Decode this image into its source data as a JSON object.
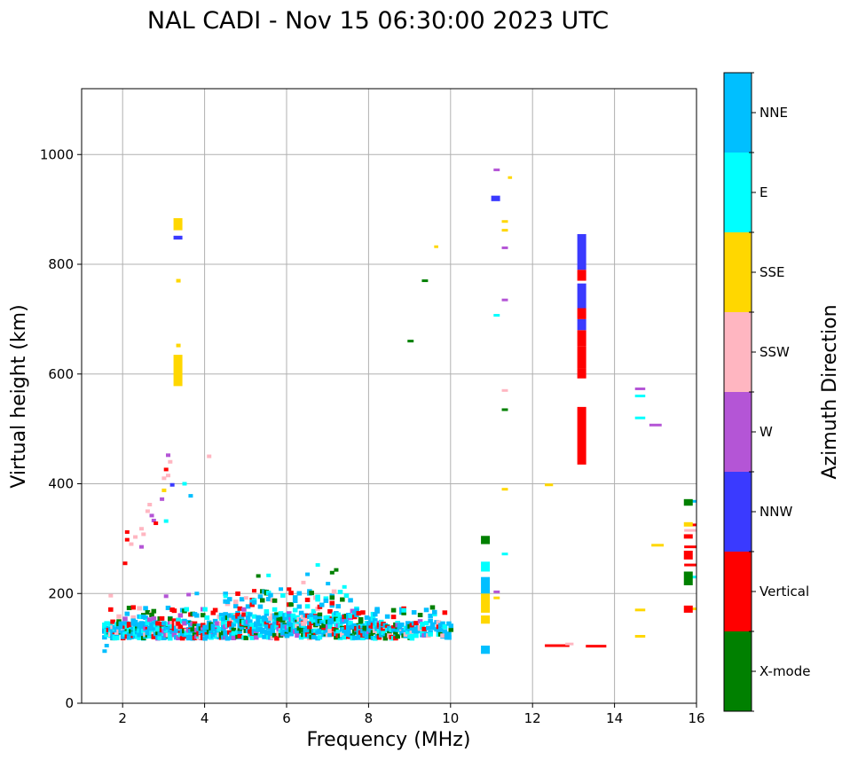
{
  "chart_data": {
    "type": "scatter",
    "title": "NAL CADI - Nov 15 06:30:00 2023 UTC",
    "xlabel": "Frequency (MHz)",
    "ylabel": "Virtual height (km)",
    "xlim": [
      1,
      16
    ],
    "ylim": [
      0,
      1120
    ],
    "xticks": [
      2,
      4,
      6,
      8,
      10,
      12,
      14,
      16
    ],
    "yticks": [
      0,
      200,
      400,
      600,
      800,
      1000
    ],
    "grid": true,
    "colorbar": {
      "title": "Azimuth Direction",
      "categories": [
        {
          "name": "X-mode",
          "color": "#008000"
        },
        {
          "name": "Vertical",
          "color": "#ff0000"
        },
        {
          "name": "NNW",
          "color": "#3a3aff"
        },
        {
          "name": "W",
          "color": "#b455d6"
        },
        {
          "name": "SSW",
          "color": "#ffb6c1"
        },
        {
          "name": "SSE",
          "color": "#ffd700"
        },
        {
          "name": "E",
          "color": "#00ffff"
        },
        {
          "name": "NNE",
          "color": "#00bfff"
        }
      ]
    },
    "segments": [
      {
        "x": 13.2,
        "y0": 435,
        "y1": 540,
        "c": "Vertical"
      },
      {
        "x": 13.2,
        "y0": 592,
        "y1": 610,
        "c": "Vertical"
      },
      {
        "x": 13.2,
        "y0": 610,
        "y1": 650,
        "c": "Vertical"
      },
      {
        "x": 13.2,
        "y0": 650,
        "y1": 680,
        "c": "Vertical"
      },
      {
        "x": 13.2,
        "y0": 680,
        "y1": 700,
        "c": "NNW"
      },
      {
        "x": 13.2,
        "y0": 700,
        "y1": 720,
        "c": "Vertical"
      },
      {
        "x": 13.2,
        "y0": 720,
        "y1": 765,
        "c": "NNW"
      },
      {
        "x": 13.2,
        "y0": 770,
        "y1": 790,
        "c": "Vertical"
      },
      {
        "x": 13.2,
        "y0": 790,
        "y1": 855,
        "c": "NNW"
      },
      {
        "x": 3.35,
        "y0": 578,
        "y1": 635,
        "c": "SSE"
      },
      {
        "x": 3.35,
        "y0": 862,
        "y1": 884,
        "c": "SSE"
      },
      {
        "x": 3.35,
        "y0": 845,
        "y1": 852,
        "c": "NNW"
      },
      {
        "x": 10.85,
        "y0": 90,
        "y1": 105,
        "c": "NNE"
      },
      {
        "x": 10.85,
        "y0": 145,
        "y1": 160,
        "c": "SSE"
      },
      {
        "x": 10.85,
        "y0": 165,
        "y1": 200,
        "c": "SSE"
      },
      {
        "x": 10.85,
        "y0": 200,
        "y1": 230,
        "c": "NNE"
      },
      {
        "x": 10.85,
        "y0": 240,
        "y1": 258,
        "c": "E"
      },
      {
        "x": 10.85,
        "y0": 290,
        "y1": 305,
        "c": "X-mode"
      },
      {
        "x": 11.1,
        "y0": 915,
        "y1": 925,
        "c": "NNW"
      },
      {
        "x": 15.8,
        "y0": 165,
        "y1": 178,
        "c": "Vertical"
      },
      {
        "x": 15.8,
        "y0": 215,
        "y1": 240,
        "c": "X-mode"
      },
      {
        "x": 15.8,
        "y0": 262,
        "y1": 278,
        "c": "Vertical"
      },
      {
        "x": 15.8,
        "y0": 300,
        "y1": 308,
        "c": "Vertical"
      },
      {
        "x": 15.8,
        "y0": 322,
        "y1": 330,
        "c": "SSE"
      },
      {
        "x": 15.8,
        "y0": 360,
        "y1": 372,
        "c": "X-mode"
      }
    ],
    "hlines": [
      {
        "x0": 12.3,
        "x1": 12.9,
        "y": 105,
        "c": "Vertical"
      },
      {
        "x0": 12.8,
        "x1": 13.0,
        "y": 108,
        "c": "SSW"
      },
      {
        "x0": 13.3,
        "x1": 13.8,
        "y": 104,
        "c": "Vertical"
      },
      {
        "x0": 12.3,
        "x1": 12.5,
        "y": 398,
        "c": "SSE"
      },
      {
        "x0": 14.5,
        "x1": 14.75,
        "y": 573,
        "c": "W"
      },
      {
        "x0": 14.5,
        "x1": 14.75,
        "y": 560,
        "c": "E"
      },
      {
        "x0": 14.5,
        "x1": 14.75,
        "y": 520,
        "c": "E"
      },
      {
        "x0": 14.85,
        "x1": 15.15,
        "y": 507,
        "c": "W"
      },
      {
        "x0": 14.9,
        "x1": 15.2,
        "y": 288,
        "c": "SSE"
      },
      {
        "x0": 14.5,
        "x1": 14.75,
        "y": 170,
        "c": "SSE"
      },
      {
        "x0": 14.5,
        "x1": 14.75,
        "y": 122,
        "c": "SSE"
      },
      {
        "x0": 8.95,
        "x1": 9.1,
        "y": 660,
        "c": "X-mode"
      },
      {
        "x0": 9.3,
        "x1": 9.45,
        "y": 770,
        "c": "X-mode"
      },
      {
        "x0": 9.6,
        "x1": 9.7,
        "y": 832,
        "c": "SSE"
      },
      {
        "x0": 11.05,
        "x1": 11.2,
        "y": 707,
        "c": "E"
      },
      {
        "x0": 11.25,
        "x1": 11.4,
        "y": 535,
        "c": "X-mode"
      },
      {
        "x0": 11.25,
        "x1": 11.4,
        "y": 570,
        "c": "SSW"
      },
      {
        "x0": 11.25,
        "x1": 11.4,
        "y": 735,
        "c": "W"
      },
      {
        "x0": 11.25,
        "x1": 11.4,
        "y": 830,
        "c": "W"
      },
      {
        "x0": 11.25,
        "x1": 11.4,
        "y": 862,
        "c": "SSE"
      },
      {
        "x0": 11.25,
        "x1": 11.4,
        "y": 878,
        "c": "SSE"
      },
      {
        "x0": 11.4,
        "x1": 11.5,
        "y": 958,
        "c": "SSE"
      },
      {
        "x0": 11.05,
        "x1": 11.2,
        "y": 972,
        "c": "W"
      },
      {
        "x0": 11.25,
        "x1": 11.4,
        "y": 390,
        "c": "SSE"
      },
      {
        "x0": 11.25,
        "x1": 11.4,
        "y": 272,
        "c": "E"
      },
      {
        "x0": 11.05,
        "x1": 11.2,
        "y": 203,
        "c": "W"
      },
      {
        "x0": 11.05,
        "x1": 11.2,
        "y": 192,
        "c": "SSE"
      },
      {
        "x0": 15.7,
        "x1": 16.0,
        "y": 368,
        "c": "NNE"
      },
      {
        "x0": 15.7,
        "x1": 16.0,
        "y": 325,
        "c": "Vertical"
      },
      {
        "x0": 15.7,
        "x1": 16.0,
        "y": 315,
        "c": "SSW"
      },
      {
        "x0": 15.7,
        "x1": 16.0,
        "y": 285,
        "c": "Vertical"
      },
      {
        "x0": 15.7,
        "x1": 16.0,
        "y": 252,
        "c": "Vertical"
      },
      {
        "x0": 15.7,
        "x1": 16.0,
        "y": 230,
        "c": "E"
      },
      {
        "x0": 15.7,
        "x1": 16.0,
        "y": 172,
        "c": "SSE"
      }
    ],
    "points": [
      {
        "x": 3.1,
        "y": 452,
        "c": "W"
      },
      {
        "x": 3.15,
        "y": 440,
        "c": "SSW"
      },
      {
        "x": 3.05,
        "y": 426,
        "c": "Vertical"
      },
      {
        "x": 3.0,
        "y": 410,
        "c": "SSW"
      },
      {
        "x": 3.1,
        "y": 415,
        "c": "SSW"
      },
      {
        "x": 3.2,
        "y": 398,
        "c": "NNW"
      },
      {
        "x": 3.0,
        "y": 388,
        "c": "SSE"
      },
      {
        "x": 2.95,
        "y": 372,
        "c": "W"
      },
      {
        "x": 2.65,
        "y": 362,
        "c": "SSW"
      },
      {
        "x": 2.6,
        "y": 350,
        "c": "SSW"
      },
      {
        "x": 2.7,
        "y": 342,
        "c": "W"
      },
      {
        "x": 2.75,
        "y": 333,
        "c": "W"
      },
      {
        "x": 2.8,
        "y": 328,
        "c": "Vertical"
      },
      {
        "x": 2.45,
        "y": 318,
        "c": "SSW"
      },
      {
        "x": 2.5,
        "y": 308,
        "c": "SSW"
      },
      {
        "x": 2.3,
        "y": 303,
        "c": "SSW"
      },
      {
        "x": 2.1,
        "y": 312,
        "c": "Vertical"
      },
      {
        "x": 2.1,
        "y": 298,
        "c": "Vertical"
      },
      {
        "x": 2.2,
        "y": 290,
        "c": "SSW"
      },
      {
        "x": 2.45,
        "y": 285,
        "c": "W"
      },
      {
        "x": 2.05,
        "y": 255,
        "c": "Vertical"
      },
      {
        "x": 3.05,
        "y": 332,
        "c": "E"
      },
      {
        "x": 3.5,
        "y": 400,
        "c": "E"
      },
      {
        "x": 3.65,
        "y": 378,
        "c": "NNE"
      },
      {
        "x": 4.1,
        "y": 450,
        "c": "SSW"
      },
      {
        "x": 3.35,
        "y": 652,
        "c": "SSE"
      },
      {
        "x": 3.35,
        "y": 770,
        "c": "SSE"
      },
      {
        "x": 1.7,
        "y": 196,
        "c": "SSW"
      },
      {
        "x": 3.05,
        "y": 195,
        "c": "W"
      },
      {
        "x": 3.6,
        "y": 198,
        "c": "W"
      },
      {
        "x": 3.8,
        "y": 200,
        "c": "NNE"
      },
      {
        "x": 5.3,
        "y": 232,
        "c": "X-mode"
      },
      {
        "x": 5.55,
        "y": 233,
        "c": "E"
      },
      {
        "x": 6.5,
        "y": 235,
        "c": "NNE"
      },
      {
        "x": 6.75,
        "y": 252,
        "c": "E"
      },
      {
        "x": 7.1,
        "y": 238,
        "c": "X-mode"
      },
      {
        "x": 7.2,
        "y": 243,
        "c": "X-mode"
      },
      {
        "x": 6.05,
        "y": 208,
        "c": "Vertical"
      },
      {
        "x": 5.85,
        "y": 208,
        "c": "NNE"
      },
      {
        "x": 6.4,
        "y": 220,
        "c": "SSW"
      },
      {
        "x": 7.0,
        "y": 218,
        "c": "NNE"
      },
      {
        "x": 7.4,
        "y": 212,
        "c": "E"
      },
      {
        "x": 4.5,
        "y": 195,
        "c": "E"
      },
      {
        "x": 5.0,
        "y": 192,
        "c": "SSW"
      },
      {
        "x": 5.2,
        "y": 205,
        "c": "Vertical"
      },
      {
        "x": 1.55,
        "y": 95,
        "c": "NNE"
      },
      {
        "x": 1.6,
        "y": 105,
        "c": "NNE"
      }
    ],
    "cluster": {
      "x_min": 1.5,
      "x_max": 10.0,
      "y_min": 118,
      "y_max": 175,
      "upper_x_min": 4.3,
      "upper_x_max": 7.5,
      "upper_y_max": 205,
      "mix": [
        "NNE",
        "NNE",
        "NNE",
        "NNE",
        "NNE",
        "NNE",
        "E",
        "E",
        "E",
        "X-mode",
        "X-mode",
        "Vertical",
        "Vertical",
        "SSW",
        "W"
      ]
    }
  }
}
